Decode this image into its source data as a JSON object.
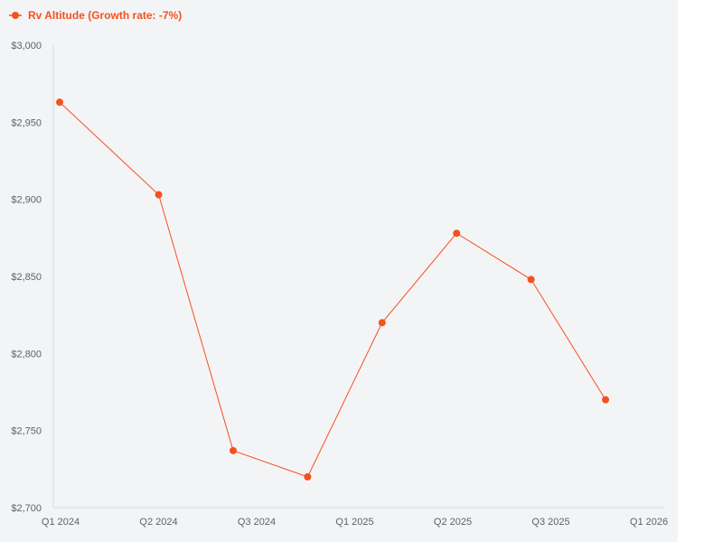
{
  "chart_data": {
    "type": "line",
    "title": "",
    "xlabel": "",
    "ylabel": "",
    "legend": {
      "label": "Rv Altitude (Growth rate: -7%)",
      "position": "top-left"
    },
    "x_tick_labels": [
      "Q1 2024",
      "Q2 2024",
      "Q3 2024",
      "Q1 2025",
      "Q2 2025",
      "Q3 2025",
      "Q1 2026"
    ],
    "y_tick_labels": [
      "$2,700",
      "$2,750",
      "$2,800",
      "$2,850",
      "$2,900",
      "$2,950",
      "$3,000"
    ],
    "ylim": [
      2700,
      3000
    ],
    "y_ticks": [
      2700,
      2750,
      2800,
      2850,
      2900,
      2950,
      3000
    ],
    "grid": false,
    "series": [
      {
        "name": "Rv Altitude (Growth rate: -7%)",
        "color": "#f4511e",
        "points": [
          {
            "x": "2024-01-01",
            "y": 2963
          },
          {
            "x": "2024-05-01",
            "y": 2903
          },
          {
            "x": "2024-07-31",
            "y": 2737
          },
          {
            "x": "2024-10-30",
            "y": 2720
          },
          {
            "x": "2025-01-29",
            "y": 2820
          },
          {
            "x": "2025-04-30",
            "y": 2878
          },
          {
            "x": "2025-07-30",
            "y": 2848
          },
          {
            "x": "2025-10-29",
            "y": 2770
          }
        ]
      }
    ]
  }
}
